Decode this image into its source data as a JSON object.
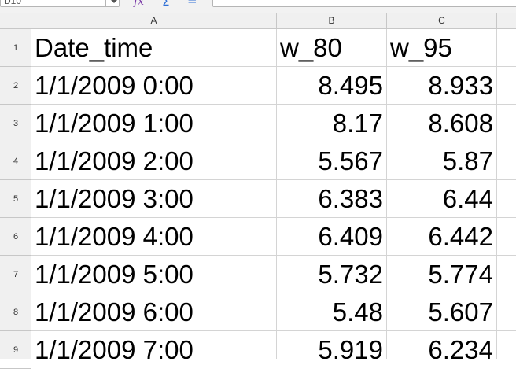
{
  "name_box": {
    "value": "D10"
  },
  "formula_bar": {
    "fx_icon": "function-wizard-icon",
    "sum_icon": "sum-icon",
    "equals_icon": "formula-icon"
  },
  "columns": [
    "A",
    "B",
    "C"
  ],
  "rows": [
    {
      "num": "1",
      "cells": [
        "Date_time",
        "w_80",
        "w_95"
      ]
    },
    {
      "num": "2",
      "cells": [
        "1/1/2009 0:00",
        "8.495",
        "8.933"
      ]
    },
    {
      "num": "3",
      "cells": [
        "1/1/2009 1:00",
        "8.17",
        "8.608"
      ]
    },
    {
      "num": "4",
      "cells": [
        "1/1/2009 2:00",
        "5.567",
        "5.87"
      ]
    },
    {
      "num": "5",
      "cells": [
        "1/1/2009 3:00",
        "6.383",
        "6.44"
      ]
    },
    {
      "num": "6",
      "cells": [
        "1/1/2009 4:00",
        "6.409",
        "6.442"
      ]
    },
    {
      "num": "7",
      "cells": [
        "1/1/2009 5:00",
        "5.732",
        "5.774"
      ]
    },
    {
      "num": "8",
      "cells": [
        "1/1/2009 6:00",
        "5.48",
        "5.607"
      ]
    },
    {
      "num": "9",
      "cells": [
        "1/1/2009 7:00",
        "5.919",
        "6.234"
      ]
    }
  ]
}
